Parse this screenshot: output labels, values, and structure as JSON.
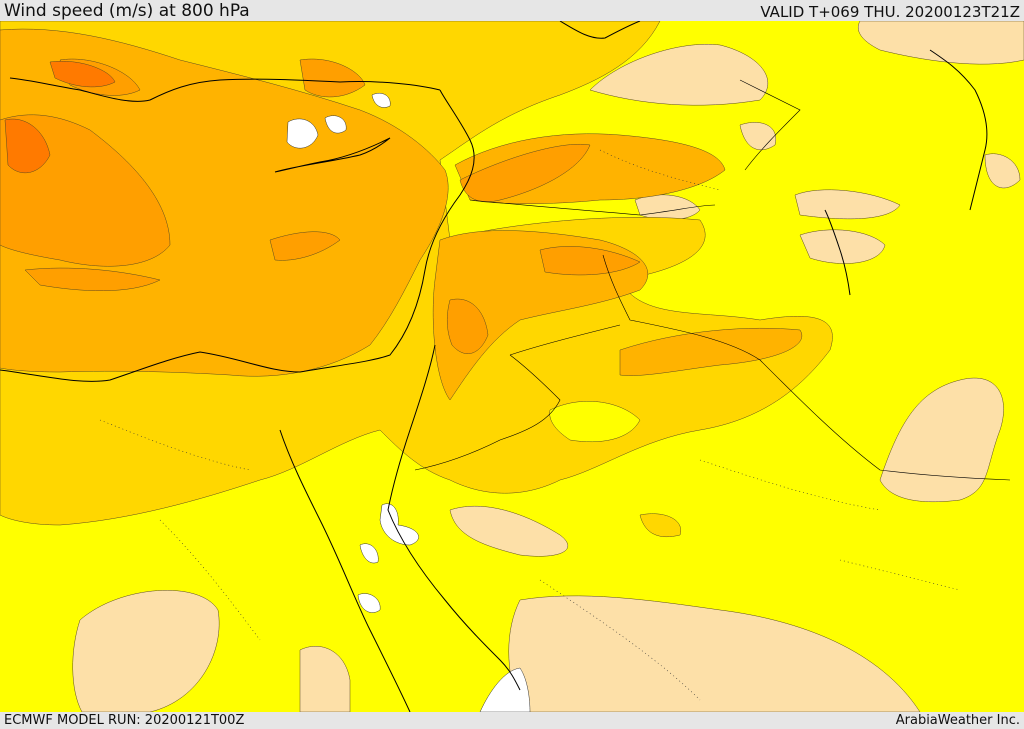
{
  "header": {
    "title": "Wind speed (m/s) at 800 hPa",
    "valid_time": "VALID T+069 THU. 20200123T21Z"
  },
  "footer": {
    "model_run": "ECMWF MODEL RUN: 20200121T00Z",
    "credit": "ArabiaWeather Inc."
  },
  "colors": {
    "background_field": "#ffff00",
    "weak_wind": "#fde0a8",
    "moderate_wind": "#ffd700",
    "strong_wind": "#ffb300",
    "very_strong_wind": "#ff9200",
    "extreme_wind": "#ff7a00",
    "calm": "#ffffff",
    "coastline": "#000000"
  }
}
